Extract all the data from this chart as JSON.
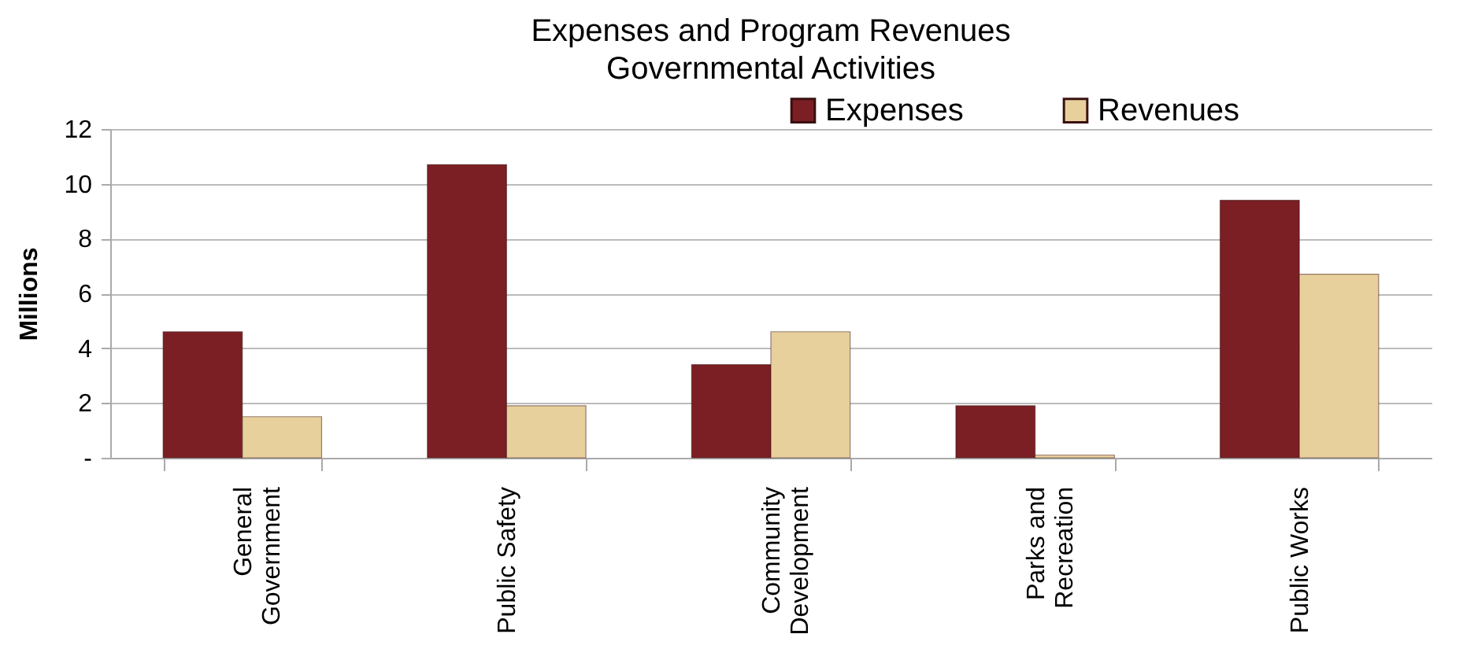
{
  "chart_data": {
    "type": "bar",
    "title": "Expenses and Program Revenues",
    "subtitle": "Governmental Activities",
    "ylabel": "Millions",
    "categories": [
      "General Government",
      "Public Safety",
      "Community Development",
      "Parks and Recreation",
      "Public Works"
    ],
    "series": [
      {
        "name": "Expenses",
        "color": "#7b1f24",
        "values": [
          4.6,
          10.7,
          3.4,
          1.9,
          9.4
        ]
      },
      {
        "name": "Revenues",
        "color": "#e8d09c",
        "values": [
          1.5,
          1.9,
          4.6,
          0.1,
          6.7
        ]
      }
    ],
    "ylim": [
      0,
      12
    ],
    "yticks": [
      {
        "value": 0,
        "label": "-"
      },
      2,
      4,
      6,
      8,
      10,
      12
    ],
    "grid": "y",
    "legend": "top right"
  }
}
